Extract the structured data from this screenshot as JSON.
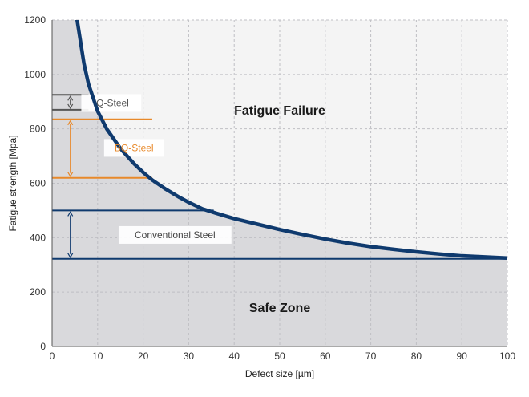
{
  "chart_data": {
    "type": "line",
    "title": "",
    "xlabel": "Defect size [µm]",
    "ylabel": "Fatigue strength [Mpa]",
    "xlim": [
      0,
      100
    ],
    "ylim": [
      0,
      1200
    ],
    "x_ticks": [
      0,
      10,
      20,
      30,
      40,
      50,
      60,
      70,
      80,
      90,
      100
    ],
    "y_ticks": [
      0,
      200,
      400,
      600,
      800,
      1000,
      1200
    ],
    "grid": true,
    "series": [
      {
        "x": [
          5.5,
          7,
          8,
          10,
          12,
          15,
          18,
          20,
          22,
          25,
          28,
          30,
          33,
          36,
          40,
          45,
          50,
          55,
          60,
          65,
          70,
          75,
          80,
          85,
          90,
          95,
          100
        ],
        "y": [
          1200,
          1040,
          965,
          865,
          800,
          728,
          672,
          640,
          612,
          578,
          548,
          530,
          506,
          490,
          470,
          450,
          430,
          412,
          395,
          380,
          367,
          357,
          348,
          340,
          333,
          329,
          325
        ],
        "color": "#0f3a6e"
      }
    ],
    "regions": [
      {
        "label": "Fatigue Failure",
        "x": 50,
        "y": 870
      },
      {
        "label": "Safe Zone",
        "x": 50,
        "y": 145
      }
    ],
    "bands": [
      {
        "label": "IQ-Steel",
        "low": 870,
        "high": 925,
        "x_end": 8,
        "color": "#555555",
        "arrow_x": 4,
        "label_x": 13,
        "label_y": 895
      },
      {
        "label": "BQ-Steel",
        "low": 620,
        "high": 835,
        "x_end": 22,
        "color": "#e8892a",
        "arrow_x": 4,
        "label_x": 18,
        "label_y": 730
      },
      {
        "label": "Conventional Steel",
        "low": 322,
        "high": 500,
        "x_end": 35.5,
        "color": "#0f3a6e",
        "arrow_x": 4,
        "label_x": 27,
        "label_y": 410,
        "full_low_line": true
      }
    ],
    "colors": {
      "curve": "#0f3a6e",
      "failure_bg": "#f4f4f4",
      "safe_bg": "#d9d9dc",
      "grid": "#bfbfc4"
    }
  }
}
